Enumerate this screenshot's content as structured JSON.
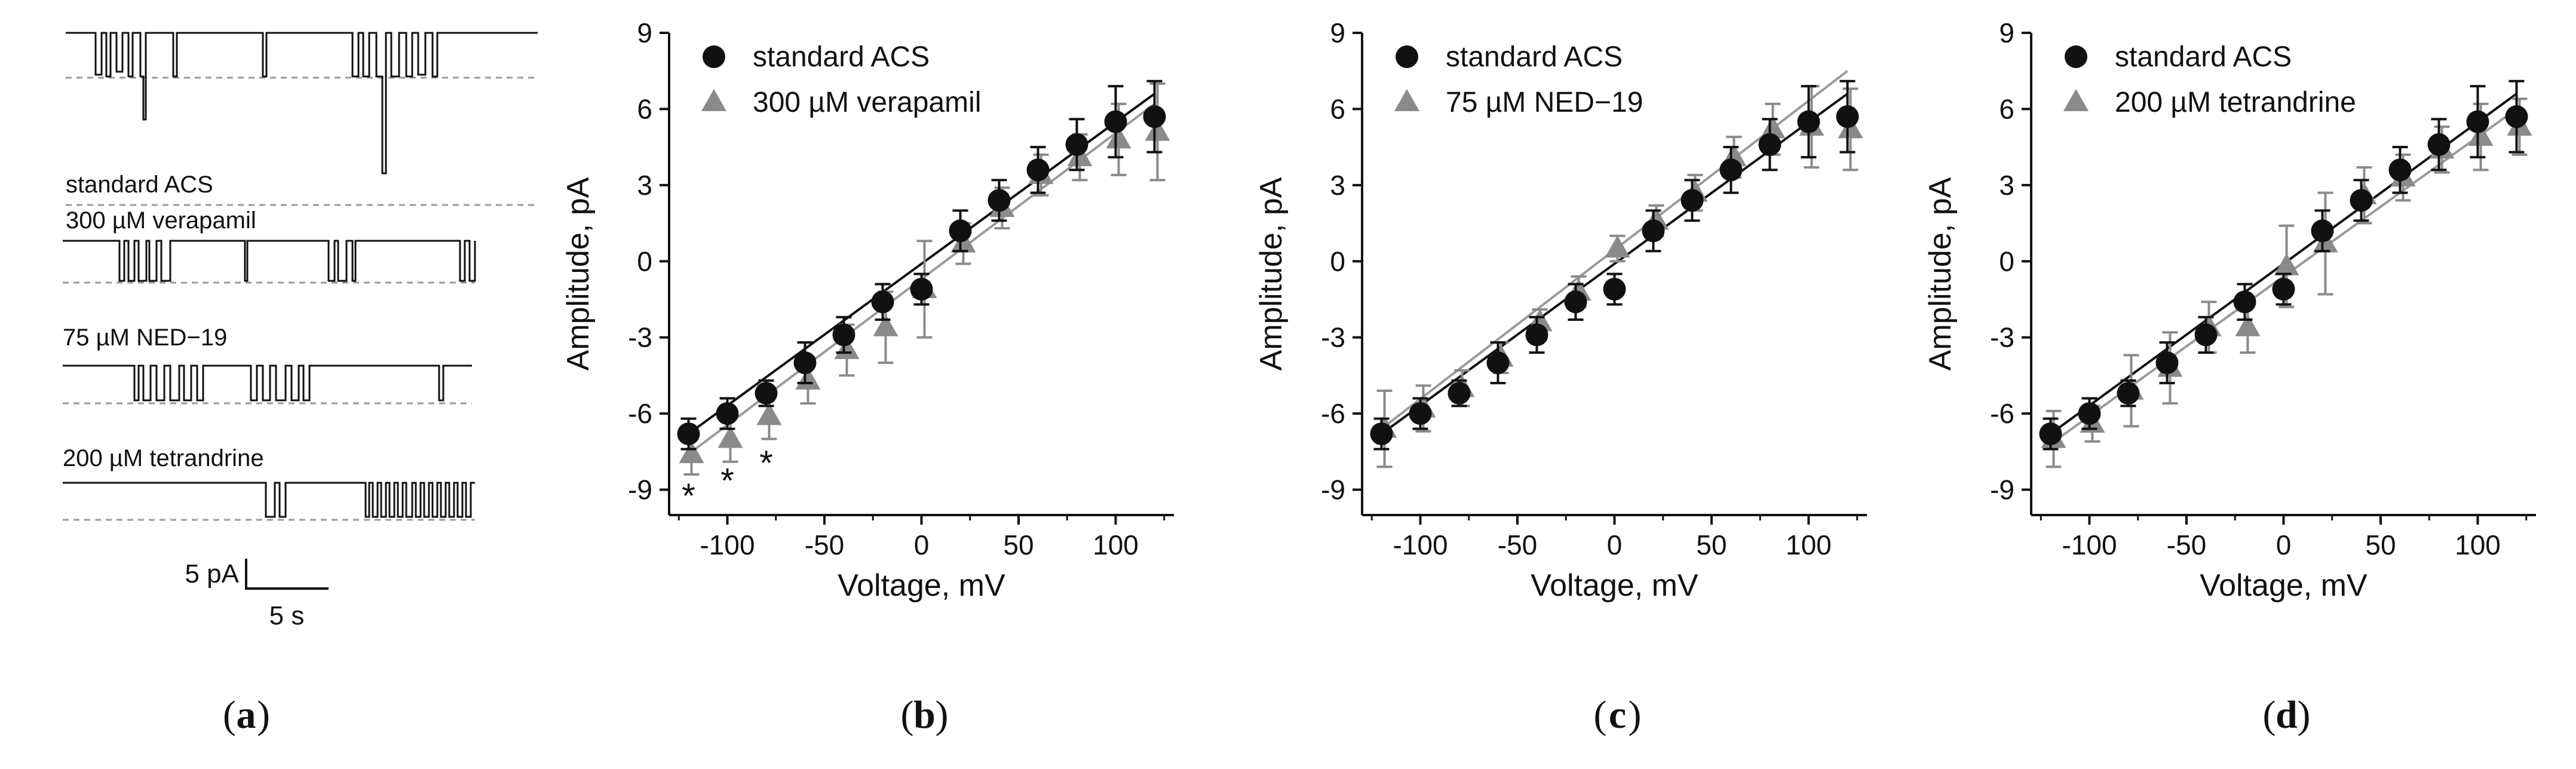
{
  "panel_a": {
    "label": "a",
    "traces": [
      {
        "name": "standard ACS"
      },
      {
        "name": "300 µM verapamil"
      },
      {
        "name": "75 µM NED−19"
      },
      {
        "name": "200 µM tetrandrine"
      }
    ],
    "scale_bar": {
      "current": "5 pA",
      "time": "5 s"
    }
  },
  "panels": [
    {
      "label": "b",
      "legend": [
        "standard ACS",
        "300 µM verapamil"
      ],
      "asterisk": "*"
    },
    {
      "label": "c",
      "legend": [
        "standard ACS",
        "75 µM NED−19"
      ]
    },
    {
      "label": "d",
      "legend": [
        "standard ACS",
        "200 µM tetrandrine"
      ]
    }
  ],
  "colors": {
    "control": "#111111",
    "treatment": "#8a8a8a",
    "fit_treatment": "#9a9a9a"
  },
  "chart_data": [
    {
      "type": "scatter",
      "panel": "b",
      "title": "",
      "xlabel": "Voltage, mV",
      "ylabel": "Amplitude, pA",
      "xlim": [
        -130,
        130
      ],
      "ylim": [
        -10,
        9
      ],
      "xticks": [
        -100,
        -50,
        0,
        50,
        100
      ],
      "yticks": [
        -9,
        -6,
        -3,
        0,
        3,
        6,
        9
      ],
      "legend_position": "top-left",
      "series": [
        {
          "name": "standard ACS",
          "marker": "circle",
          "x": [
            -120,
            -100,
            -80,
            -60,
            -40,
            -20,
            0,
            20,
            40,
            60,
            80,
            100,
            120
          ],
          "y": [
            -6.8,
            -6.0,
            -5.2,
            -4.0,
            -2.9,
            -1.6,
            -1.1,
            1.2,
            2.4,
            3.6,
            4.6,
            5.5,
            5.7
          ],
          "err": [
            0.6,
            0.6,
            0.5,
            0.8,
            0.7,
            0.7,
            0.6,
            0.8,
            0.8,
            0.9,
            1.0,
            1.4,
            1.4
          ]
        },
        {
          "name": "300 µM verapamil",
          "marker": "triangle",
          "x": [
            -120,
            -100,
            -80,
            -60,
            -40,
            -20,
            0,
            20,
            40,
            60,
            80,
            100,
            120
          ],
          "y": [
            -7.6,
            -7.0,
            -6.1,
            -4.7,
            -3.5,
            -2.6,
            -1.1,
            0.7,
            2.1,
            3.4,
            4.1,
            4.8,
            5.1
          ],
          "err": [
            0.8,
            0.9,
            0.9,
            0.9,
            1.0,
            1.4,
            1.9,
            0.8,
            0.8,
            0.8,
            0.9,
            1.4,
            1.9
          ]
        }
      ],
      "fits": [
        {
          "name": "standard ACS",
          "x": [
            -120,
            120
          ],
          "y": [
            -6.8,
            6.6
          ]
        },
        {
          "name": "300 µM verapamil",
          "x": [
            -120,
            120
          ],
          "y": [
            -7.6,
            6.2
          ]
        }
      ],
      "annotations": [
        {
          "text": "*",
          "x": -120,
          "y": -9.2
        },
        {
          "text": "*",
          "x": -100,
          "y": -8.6
        },
        {
          "text": "*",
          "x": -80,
          "y": -7.9
        }
      ]
    },
    {
      "type": "scatter",
      "panel": "c",
      "title": "",
      "xlabel": "Voltage, mV",
      "ylabel": "Amplitude, pA",
      "xlim": [
        -130,
        130
      ],
      "ylim": [
        -10,
        9
      ],
      "xticks": [
        -100,
        -50,
        0,
        50,
        100
      ],
      "yticks": [
        -9,
        -6,
        -3,
        0,
        3,
        6,
        9
      ],
      "legend_position": "top-left",
      "series": [
        {
          "name": "standard ACS",
          "marker": "circle",
          "x": [
            -120,
            -100,
            -80,
            -60,
            -40,
            -20,
            0,
            20,
            40,
            60,
            80,
            100,
            120
          ],
          "y": [
            -6.8,
            -6.0,
            -5.2,
            -4.0,
            -2.9,
            -1.6,
            -1.1,
            1.2,
            2.4,
            3.6,
            4.6,
            5.5,
            5.7
          ],
          "err": [
            0.6,
            0.6,
            0.5,
            0.8,
            0.7,
            0.7,
            0.6,
            0.8,
            0.8,
            0.9,
            1.0,
            1.4,
            1.4
          ]
        },
        {
          "name": "75 µM NED−19",
          "marker": "triangle",
          "x": [
            -120,
            -100,
            -80,
            -60,
            -40,
            -20,
            0,
            20,
            40,
            60,
            80,
            100,
            120
          ],
          "y": [
            -6.6,
            -5.8,
            -5.0,
            -3.8,
            -2.4,
            -1.2,
            0.5,
            1.6,
            2.7,
            4.1,
            5.2,
            5.3,
            5.2
          ],
          "err": [
            1.5,
            0.9,
            0.7,
            0.6,
            0.5,
            0.6,
            0.5,
            0.6,
            0.7,
            0.8,
            1.0,
            1.6,
            1.6
          ]
        }
      ],
      "fits": [
        {
          "name": "standard ACS",
          "x": [
            -120,
            120
          ],
          "y": [
            -6.8,
            6.6
          ]
        },
        {
          "name": "75 µM NED−19",
          "x": [
            -120,
            120
          ],
          "y": [
            -6.6,
            7.5
          ]
        }
      ],
      "annotations": []
    },
    {
      "type": "scatter",
      "panel": "d",
      "title": "",
      "xlabel": "Voltage, mV",
      "ylabel": "Amplitude, pA",
      "xlim": [
        -130,
        130
      ],
      "ylim": [
        -10,
        9
      ],
      "xticks": [
        -100,
        -50,
        0,
        50,
        100
      ],
      "yticks": [
        -9,
        -6,
        -3,
        0,
        3,
        6,
        9
      ],
      "legend_position": "top-left",
      "series": [
        {
          "name": "standard ACS",
          "marker": "circle",
          "x": [
            -120,
            -100,
            -80,
            -60,
            -40,
            -20,
            0,
            20,
            40,
            60,
            80,
            100,
            120
          ],
          "y": [
            -6.8,
            -6.0,
            -5.2,
            -4.0,
            -2.9,
            -1.6,
            -1.1,
            1.2,
            2.4,
            3.6,
            4.6,
            5.5,
            5.7
          ],
          "err": [
            0.6,
            0.6,
            0.5,
            0.8,
            0.7,
            0.7,
            0.6,
            0.8,
            0.8,
            0.9,
            1.0,
            1.4,
            1.4
          ]
        },
        {
          "name": "200 µM tetrandrine",
          "marker": "triangle",
          "x": [
            -120,
            -100,
            -80,
            -60,
            -40,
            -20,
            0,
            20,
            40,
            60,
            80,
            100,
            120
          ],
          "y": [
            -7.0,
            -6.4,
            -5.1,
            -4.2,
            -2.6,
            -2.6,
            -0.2,
            0.7,
            2.6,
            3.3,
            4.4,
            4.9,
            5.3
          ],
          "err": [
            1.1,
            0.7,
            1.4,
            1.4,
            1.0,
            1.0,
            1.6,
            2.0,
            1.1,
            0.9,
            0.9,
            1.3,
            1.1
          ]
        }
      ],
      "fits": [
        {
          "name": "standard ACS",
          "x": [
            -120,
            120
          ],
          "y": [
            -6.8,
            6.6
          ]
        },
        {
          "name": "200 µM tetrandrine",
          "x": [
            -120,
            120
          ],
          "y": [
            -7.2,
            6.0
          ]
        }
      ],
      "annotations": []
    }
  ]
}
